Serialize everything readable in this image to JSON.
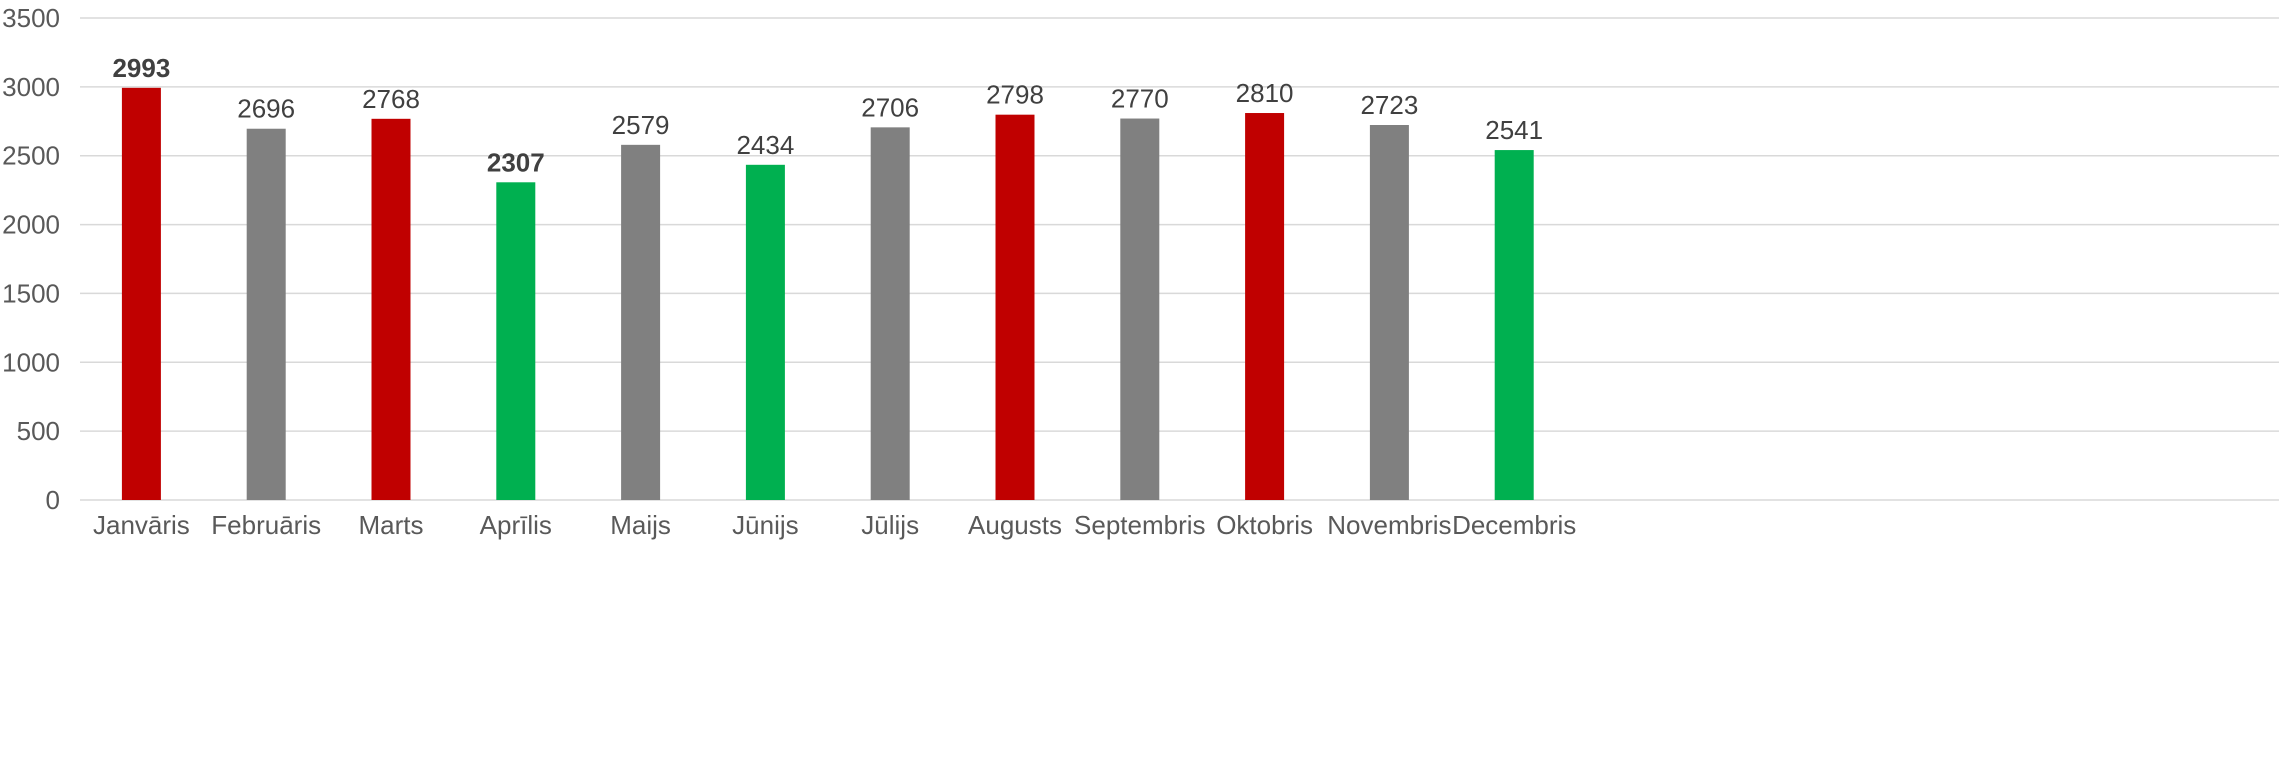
{
  "chart_data": {
    "type": "bar",
    "categories": [
      "Janvāris",
      "Februāris",
      "Marts",
      "Aprīlis",
      "Maijs",
      "Jūnijs",
      "Jūlijs",
      "Augusts",
      "Septembris",
      "Oktobris",
      "Novembris",
      "Decembris"
    ],
    "values": [
      2993,
      2696,
      2768,
      2307,
      2579,
      2434,
      2706,
      2798,
      2770,
      2810,
      2723,
      2541
    ],
    "bar_colors": [
      "#c00000",
      "#808080",
      "#c00000",
      "#00b050",
      "#808080",
      "#00b050",
      "#808080",
      "#c00000",
      "#808080",
      "#c00000",
      "#808080",
      "#00b050"
    ],
    "bold_labels": [
      true,
      false,
      false,
      true,
      false,
      false,
      false,
      false,
      false,
      false,
      false,
      false
    ],
    "yticks": [
      0,
      500,
      1000,
      1500,
      2000,
      2500,
      3000,
      3500
    ],
    "ylim": [
      0,
      3500
    ],
    "grid": true,
    "legend": "none",
    "title": "",
    "xlabel": "",
    "ylabel": ""
  }
}
